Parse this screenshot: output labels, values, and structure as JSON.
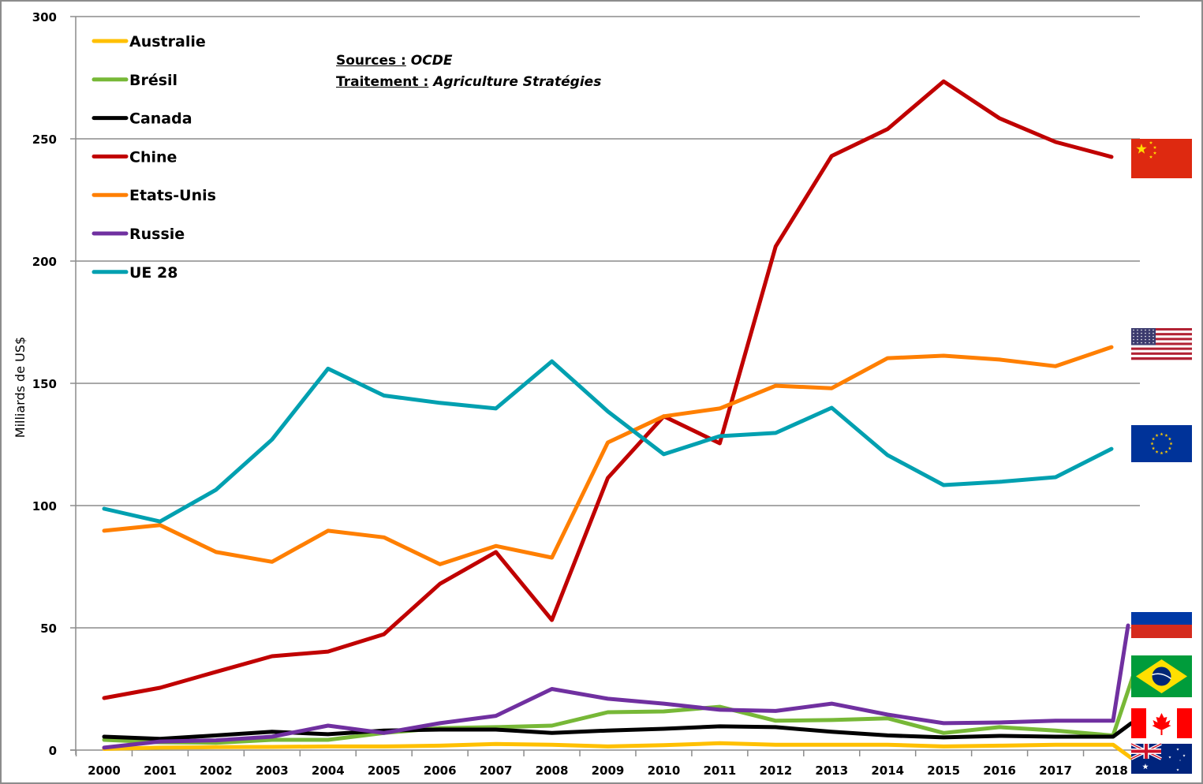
{
  "chart_data": {
    "type": "line",
    "title": "",
    "xlabel": "",
    "ylabel": "Milliards de US$",
    "ylim": [
      0,
      300
    ],
    "yticks": [
      0,
      50,
      100,
      150,
      200,
      250,
      300
    ],
    "grid": true,
    "legend_position": "top-left",
    "x": [
      "2000",
      "2001",
      "2002",
      "2003",
      "2004",
      "2005",
      "2006",
      "2007",
      "2008",
      "2009",
      "2010",
      "2011",
      "2012",
      "2013",
      "2014",
      "2015",
      "2016",
      "2017",
      "2018"
    ],
    "series": [
      {
        "name": "Australie",
        "color": "#ffc000",
        "flag": "australia-flag",
        "values": [
          0.5,
          1.0,
          1.2,
          1.3,
          1.5,
          1.5,
          1.8,
          2.5,
          2.2,
          1.5,
          2.0,
          2.8,
          2.2,
          2.2,
          2.2,
          1.5,
          1.8,
          2.2,
          2.2
        ]
      },
      {
        "name": "Brésil",
        "color": "#77b837",
        "flag": "brazil-flag",
        "values": [
          4.2,
          3.2,
          3.0,
          4.2,
          4.2,
          7.0,
          9.0,
          9.4,
          10.0,
          15.5,
          15.8,
          17.7,
          12.0,
          12.3,
          13.0,
          7.0,
          9.4,
          8.0,
          6.0
        ]
      },
      {
        "name": "Canada",
        "color": "#000000",
        "flag": "canada-flag",
        "values": [
          5.5,
          4.6,
          6.0,
          7.5,
          6.5,
          8.0,
          8.4,
          8.4,
          7.0,
          8.0,
          8.7,
          9.7,
          9.4,
          7.5,
          6.0,
          5.2,
          5.8,
          5.5,
          5.5
        ]
      },
      {
        "name": "Chine",
        "color": "#c00000",
        "flag": "china-flag",
        "values": [
          21.3,
          25.5,
          32.0,
          38.4,
          40.3,
          47.4,
          68.0,
          81.0,
          53.2,
          111.3,
          136.5,
          125.5,
          206.0,
          243.0,
          254.0,
          273.5,
          258.4,
          248.7,
          242.6
        ]
      },
      {
        "name": "Etats-Unis",
        "color": "#ff7f00",
        "flag": "usa-flag",
        "values": [
          89.7,
          92.0,
          81.0,
          77.0,
          89.7,
          87.0,
          76.0,
          83.5,
          78.7,
          125.8,
          136.5,
          139.7,
          149.0,
          148.0,
          160.3,
          161.3,
          159.7,
          157.0,
          164.8
        ]
      },
      {
        "name": "Russie",
        "color": "#7030a0",
        "flag": "russia-flag",
        "values": [
          1.0,
          3.5,
          4.0,
          5.5,
          10.0,
          7.0,
          11.0,
          14.0,
          25.0,
          21.0,
          19.0,
          16.5,
          16.0,
          19.0,
          14.5,
          11.0,
          11.3,
          12.0,
          12.0
        ]
      },
      {
        "name": "UE 28",
        "color": "#00a0b0",
        "flag": "eu-flag",
        "values": [
          98.7,
          93.5,
          106.5,
          127.0,
          156.0,
          145.0,
          142.0,
          139.7,
          159.0,
          138.5,
          121.0,
          128.4,
          129.7,
          140.0,
          120.6,
          108.4,
          109.7,
          111.6,
          123.2
        ]
      }
    ],
    "annotations": {
      "sources_label": "Sources :",
      "sources_value": "OCDE",
      "treatment_label": "Traitement :",
      "treatment_value": "Agriculture Stratégies"
    }
  }
}
